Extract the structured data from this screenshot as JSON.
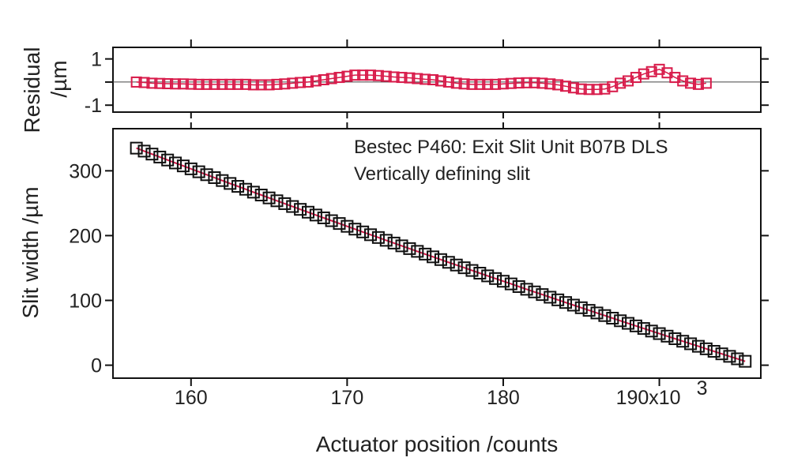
{
  "chart_data": [
    {
      "panel": "residual",
      "type": "scatter",
      "marker": "open-square",
      "color": "#d81b4a",
      "ylabel_lines": [
        "Residual",
        "/µm"
      ],
      "yticks": [
        1,
        0,
        -1
      ],
      "ytick_labels": [
        "1",
        "",
        "-1"
      ],
      "ylim": [
        -1.3,
        1.5
      ],
      "xlim": [
        155000,
        196500
      ],
      "x_start": 156500,
      "x_step": 500,
      "values": [
        0.0,
        -0.02,
        -0.05,
        -0.06,
        -0.07,
        -0.08,
        -0.08,
        -0.09,
        -0.1,
        -0.1,
        -0.1,
        -0.1,
        -0.1,
        -0.1,
        -0.1,
        -0.12,
        -0.12,
        -0.12,
        -0.1,
        -0.08,
        -0.05,
        -0.02,
        0.0,
        0.05,
        0.1,
        0.15,
        0.2,
        0.25,
        0.3,
        0.3,
        0.3,
        0.28,
        0.25,
        0.22,
        0.2,
        0.18,
        0.15,
        0.12,
        0.1,
        0.05,
        0.0,
        -0.05,
        -0.08,
        -0.1,
        -0.1,
        -0.1,
        -0.1,
        -0.08,
        -0.06,
        -0.04,
        -0.03,
        -0.03,
        -0.05,
        -0.08,
        -0.12,
        -0.18,
        -0.25,
        -0.3,
        -0.32,
        -0.32,
        -0.3,
        -0.2,
        -0.05,
        0.05,
        0.2,
        0.35,
        0.45,
        0.55,
        0.4,
        0.2,
        0.05,
        -0.05,
        -0.1,
        -0.05
      ]
    },
    {
      "panel": "main",
      "type": "scatter",
      "marker": "open-square",
      "marker_color": "#111111",
      "fit_line_color": "#d81b4a",
      "ylabel": "Slit width /µm",
      "xlabel": "Actuator position /counts",
      "xticks": [
        160000,
        170000,
        180000,
        190000
      ],
      "xtick_labels": [
        "160",
        "170",
        "180",
        "190x10"
      ],
      "x_exponent": "3",
      "yticks": [
        0,
        100,
        200,
        300
      ],
      "ytick_labels": [
        "0",
        "100",
        "200",
        "300"
      ],
      "ylim": [
        -20,
        365
      ],
      "xlim": [
        155000,
        196500
      ],
      "x_start": 156500,
      "x_step": 500,
      "x_end": 195500,
      "y_at_start": 335,
      "y_at_end": 6,
      "curvature": 30,
      "annotation": [
        "Bestec P460: Exit Slit Unit B07B DLS",
        "Vertically defining slit"
      ]
    }
  ]
}
